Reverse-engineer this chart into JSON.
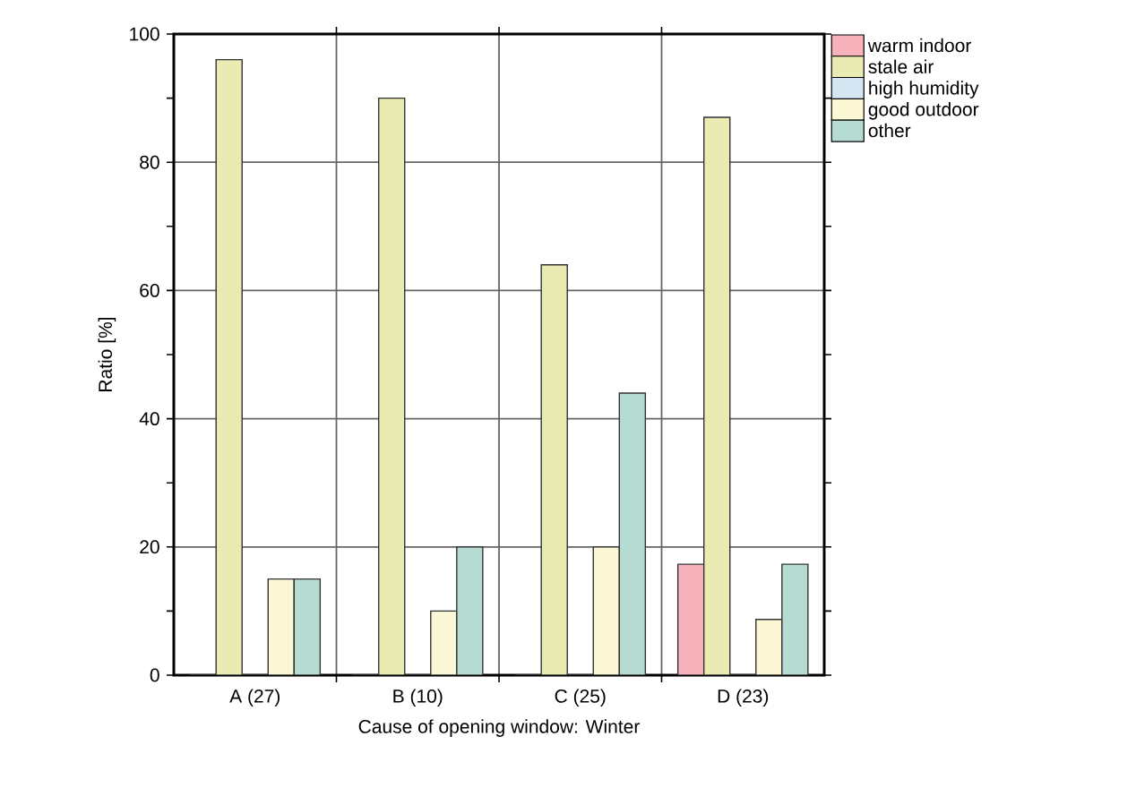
{
  "chart_data": {
    "type": "bar",
    "xlabel": "Cause of opening window: Winter",
    "ylabel": "Ratio [%]",
    "categories": [
      "A (27)",
      "B (10)",
      "C (25)",
      "D (23)"
    ],
    "series": [
      {
        "name": "warm indoor",
        "color": "#f7b3bb",
        "values": [
          0,
          0,
          0,
          17.3
        ]
      },
      {
        "name": "stale air",
        "color": "#eaeab3",
        "values": [
          96,
          90,
          64,
          87
        ]
      },
      {
        "name": "high humidity",
        "color": "#d5e6f3",
        "values": [
          0,
          0,
          0,
          0
        ]
      },
      {
        "name": "good outdoor",
        "color": "#fcf8d6",
        "values": [
          15,
          10,
          20,
          8.7
        ]
      },
      {
        "name": "other",
        "color": "#b5dbd2",
        "values": [
          15,
          20,
          44,
          17.3
        ]
      }
    ],
    "ylim": [
      0,
      100
    ],
    "yticks": [
      0,
      20,
      40,
      60,
      80,
      100
    ],
    "grid": true,
    "legend": "top right"
  }
}
